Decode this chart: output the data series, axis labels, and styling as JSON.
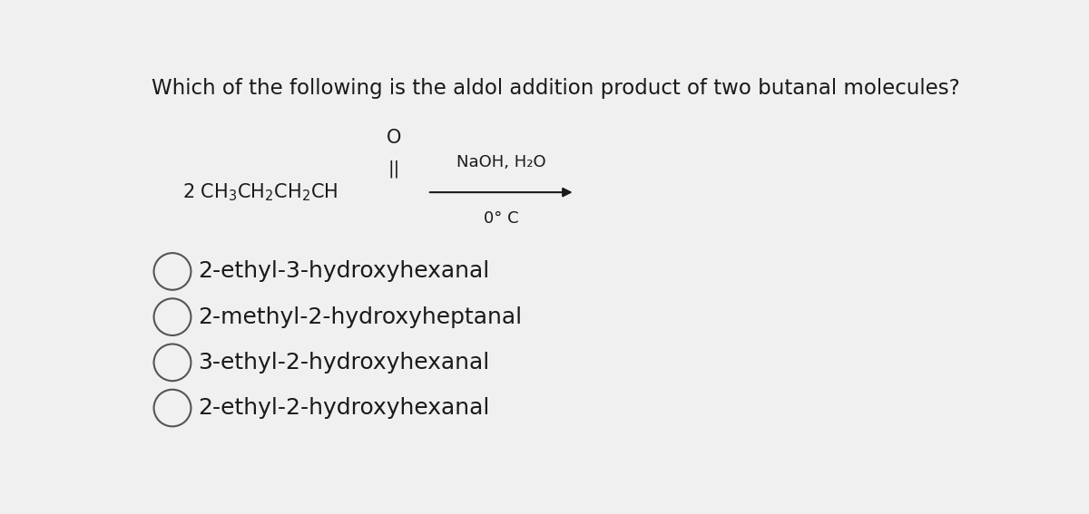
{
  "title": "Which of the following is the aldol addition product of two butanal molecules?",
  "title_fontsize": 16.5,
  "background_color": "#f0f0f0",
  "text_color": "#1a1a1a",
  "reagent_above": "NaOH, H₂O",
  "reagent_below": "0° C",
  "options": [
    "2-ethyl-3-hydroxyhexanal",
    "2-methyl-2-hydroxyheptanal",
    "3-ethyl-2-hydroxyhexanal",
    "2-ethyl-2-hydroxyhexanal"
  ],
  "option_fontsize": 18,
  "figsize": [
    12.0,
    5.67
  ],
  "dpi": 100
}
